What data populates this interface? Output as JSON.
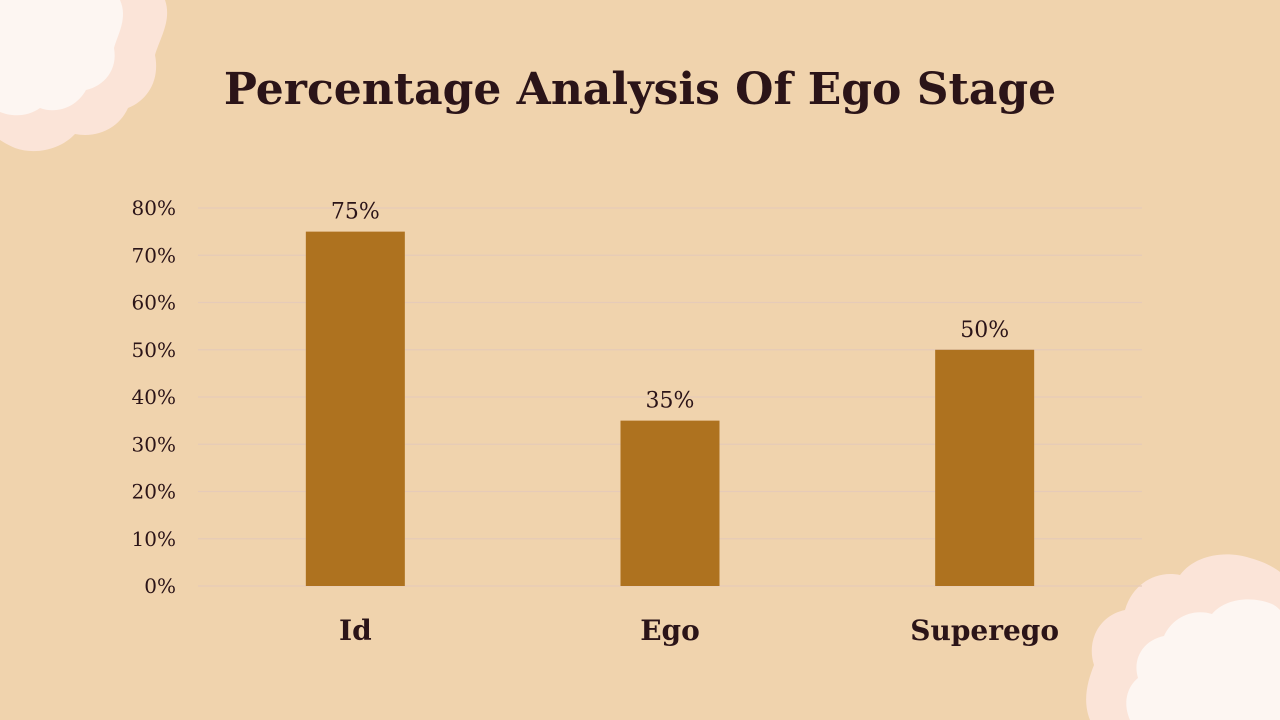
{
  "colors": {
    "background": "#f0d3ad",
    "bar": "#ae721f",
    "text": "#2b1418",
    "gridline": "#e6cbb8",
    "decoration_outer": "#fbe4d8",
    "decoration_inner": "#fdf6f2"
  },
  "chart_data": {
    "type": "bar",
    "title": "Percentage Analysis Of Ego Stage",
    "categories": [
      "Id",
      "Ego",
      "Superego"
    ],
    "values": [
      75,
      35,
      50
    ],
    "value_labels": [
      "75%",
      "35%",
      "50%"
    ],
    "yticks": [
      "0%",
      "10%",
      "20%",
      "30%",
      "40%",
      "50%",
      "60%",
      "70%",
      "80%"
    ],
    "ylim": [
      0,
      80
    ],
    "grid": true,
    "legend": "none"
  }
}
